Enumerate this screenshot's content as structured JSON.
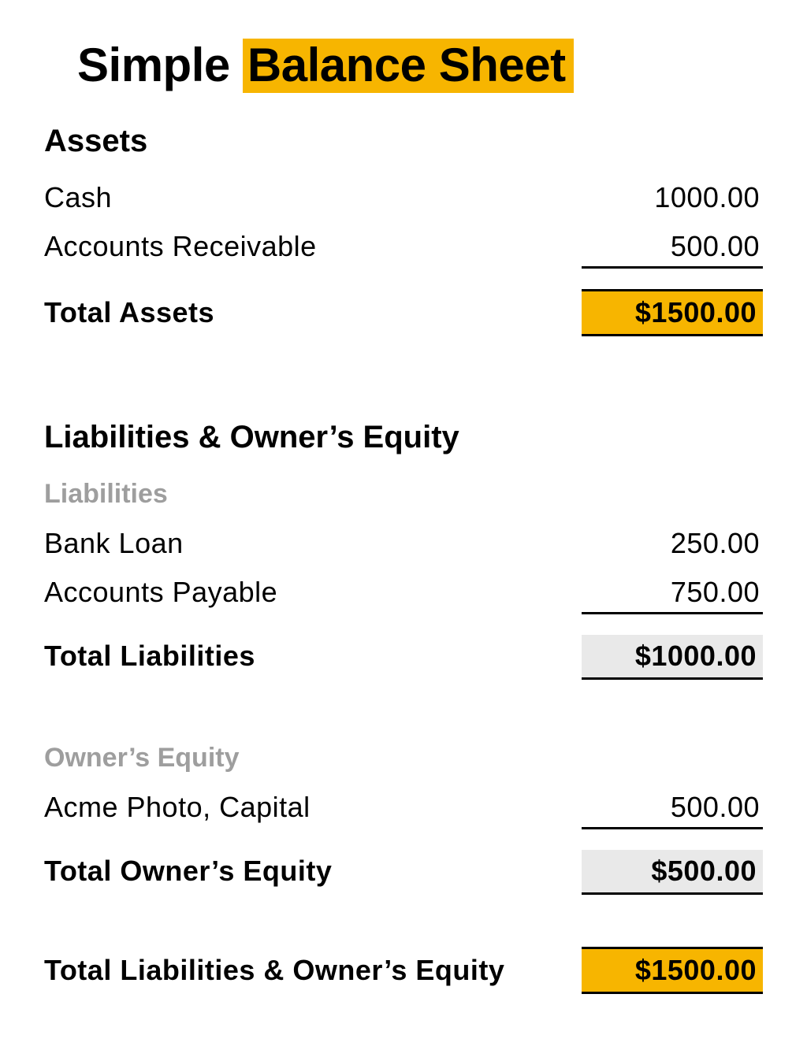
{
  "colors": {
    "accent": "#f7b500",
    "grey_bg": "#e9e9e9",
    "muted_text": "#9e9e9e",
    "border": "#000000",
    "text": "#000000",
    "background": "#ffffff"
  },
  "typography": {
    "title_fontsize": 60,
    "section_fontsize": 40,
    "sub_fontsize": 34,
    "row_fontsize": 36,
    "weight_bold": 800
  },
  "title": {
    "plain": "Simple ",
    "highlighted": "Balance Sheet"
  },
  "assets": {
    "heading": "Assets",
    "items": [
      {
        "label": "Cash",
        "value": "1000.00"
      },
      {
        "label": "Accounts Receivable",
        "value": "500.00"
      }
    ],
    "total": {
      "label": "Total Assets",
      "value": "$1500.00",
      "style": "accent"
    }
  },
  "liabilities_equity": {
    "heading": "Liabilities & Owner’s Equity",
    "liabilities": {
      "subheading": "Liabilities",
      "items": [
        {
          "label": "Bank Loan",
          "value": "250.00"
        },
        {
          "label": "Accounts Payable",
          "value": "750.00"
        }
      ],
      "total": {
        "label": "Total Liabilities",
        "value": "$1000.00",
        "style": "grey"
      }
    },
    "equity": {
      "subheading": "Owner’s Equity",
      "items": [
        {
          "label": "Acme Photo, Capital",
          "value": "500.00"
        }
      ],
      "total": {
        "label": "Total Owner’s Equity",
        "value": "$500.00",
        "style": "grey"
      }
    },
    "grand_total": {
      "label": "Total Liabilities & Owner’s Equity",
      "value": "$1500.00",
      "style": "accent"
    }
  }
}
